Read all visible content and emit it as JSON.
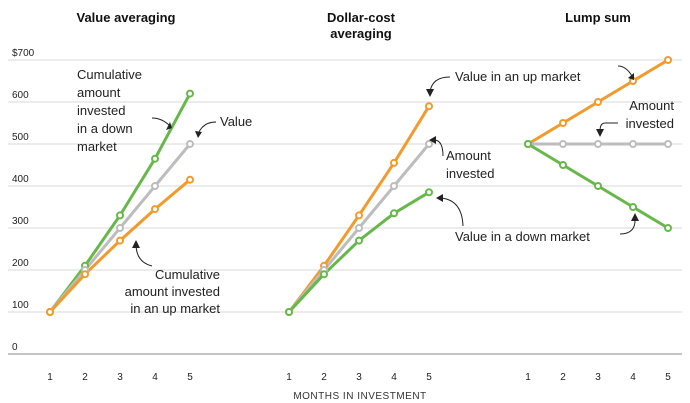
{
  "chart_data": {
    "type": "line",
    "x_axis": {
      "label": "MONTHS IN INVESTMENT",
      "ticks": [
        1,
        2,
        3,
        4,
        5
      ]
    },
    "y_axis": {
      "ylim": [
        0,
        700
      ],
      "ticks": [
        0,
        100,
        200,
        300,
        400,
        500,
        600,
        700
      ],
      "tick_labels": [
        "0",
        "100",
        "200",
        "300",
        "400",
        "500",
        "600",
        "$700"
      ],
      "grid": true
    },
    "colors": {
      "green": "#67b84a",
      "gray": "#bdbdbd",
      "orange": "#f39a2d",
      "grid": "#d9d9d9"
    },
    "panels": [
      {
        "title": "Value averaging",
        "series": [
          {
            "color": "green",
            "x": [
              1,
              2,
              3,
              4,
              5
            ],
            "values": [
              100,
              210,
              330,
              465,
              620
            ]
          },
          {
            "color": "gray",
            "x": [
              1,
              2,
              3,
              4,
              5
            ],
            "values": [
              100,
              200,
              300,
              400,
              500
            ]
          },
          {
            "color": "orange",
            "x": [
              1,
              2,
              3,
              4,
              5
            ],
            "values": [
              100,
              190,
              270,
              345,
              415
            ]
          }
        ],
        "annotations": [
          {
            "lines": [
              "Cumulative",
              "amount",
              "invested",
              "in a down",
              "market"
            ]
          },
          {
            "lines": [
              "Value"
            ]
          },
          {
            "lines": [
              "Cumulative",
              "amount invested",
              "in an up market"
            ]
          }
        ]
      },
      {
        "title": "Dollar-cost\naveraging",
        "title_lines": [
          "Dollar-cost",
          "averaging"
        ],
        "series": [
          {
            "color": "orange",
            "x": [
              1,
              2,
              3,
              4,
              5
            ],
            "values": [
              100,
              210,
              330,
              455,
              590
            ]
          },
          {
            "color": "gray",
            "x": [
              1,
              2,
              3,
              4,
              5
            ],
            "values": [
              100,
              200,
              300,
              400,
              500
            ]
          },
          {
            "color": "green",
            "x": [
              1,
              2,
              3,
              4,
              5
            ],
            "values": [
              100,
              190,
              270,
              335,
              385
            ]
          }
        ],
        "annotations": [
          {
            "lines": [
              "Value in an up market"
            ]
          },
          {
            "lines": [
              "Amount",
              "invested"
            ]
          },
          {
            "lines": [
              "Value in a down market"
            ]
          }
        ]
      },
      {
        "title": "Lump sum",
        "series": [
          {
            "color": "orange",
            "x": [
              1,
              2,
              3,
              4,
              5
            ],
            "values": [
              500,
              550,
              600,
              650,
              700
            ]
          },
          {
            "color": "gray",
            "x": [
              1,
              2,
              3,
              4,
              5
            ],
            "values": [
              500,
              500,
              500,
              500,
              500
            ]
          },
          {
            "color": "green",
            "x": [
              1,
              2,
              3,
              4,
              5
            ],
            "values": [
              500,
              450,
              400,
              350,
              300
            ]
          }
        ],
        "annotations": [
          {
            "lines": [
              "Amount",
              "invested"
            ]
          }
        ]
      }
    ]
  }
}
